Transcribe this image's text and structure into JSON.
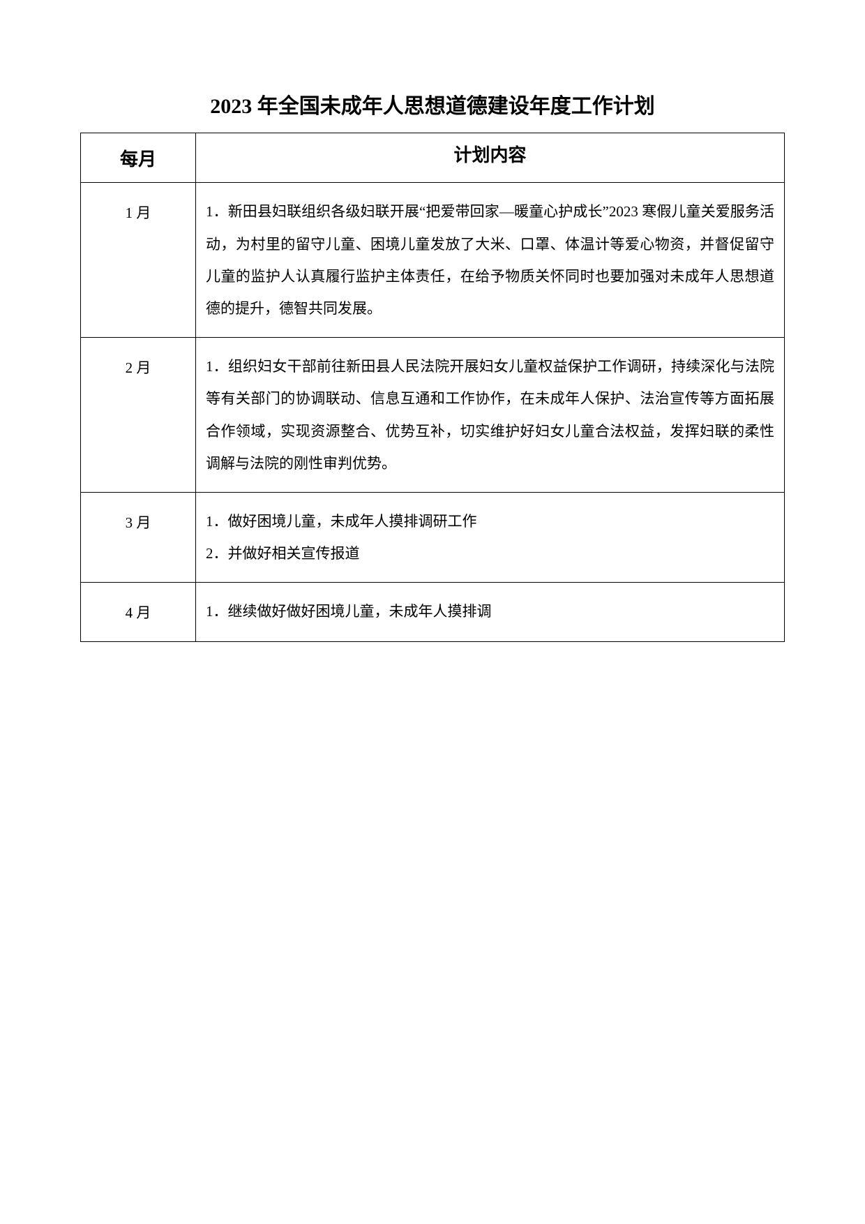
{
  "title": "2023 年全国未成年人思想道德建设年度工作计划",
  "headers": {
    "month": "每月",
    "content": "计划内容"
  },
  "rows": [
    {
      "month": "1 月",
      "content": "1．新田县妇联组织各级妇联开展“把爱带回家—暖童心护成长”2023 寒假儿童关爱服务活动，为村里的留守儿童、困境儿童发放了大米、口罩、体温计等爱心物资，并督促留守儿童的监护人认真履行监护主体责任，在给予物质关怀同时也要加强对未成年人思想道德的提升，德智共同发展。"
    },
    {
      "month": "2 月",
      "content": "1．组织妇女干部前往新田县人民法院开展妇女儿童权益保护工作调研，持续深化与法院等有关部门的协调联动、信息互通和工作协作，在未成年人保护、法治宣传等方面拓展合作领域，实现资源整合、优势互补，切实维护好妇女儿童合法权益，发挥妇联的柔性调解与法院的刚性审判优势。"
    },
    {
      "month": "3 月",
      "content": "1．做好困境儿童，未成年人摸排调研工作\n2．并做好相关宣传报道"
    },
    {
      "month": "4 月",
      "content": "1．继续做好做好困境儿童，未成年人摸排调"
    }
  ]
}
